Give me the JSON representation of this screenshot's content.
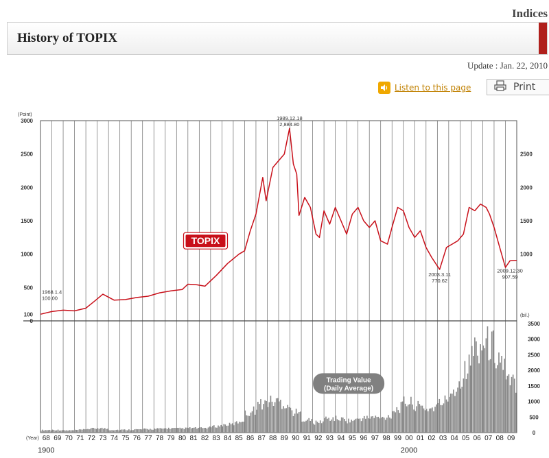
{
  "header": {
    "section": "Indices",
    "title": "History of TOPIX",
    "update": "Update : Jan. 22, 2010"
  },
  "toolbar": {
    "listen_label": "Listen to this page",
    "print_label": "Print"
  },
  "colors": {
    "accent": "#b0201c",
    "line": "#c8101a",
    "bars": "#8a8a8a",
    "badge": "#808080"
  },
  "icons": {
    "listen": "speaker-icon",
    "print": "printer-icon"
  },
  "chart_data": [
    {
      "type": "line",
      "series_label": "TOPIX",
      "ylabel": "(Point)",
      "ylim": [
        0,
        3000
      ],
      "y_ticks": [
        "0",
        "100",
        "500",
        "1000",
        "1500",
        "2000",
        "2500",
        "3000"
      ],
      "y_ticks_right": [
        "1000",
        "1500",
        "2000",
        "2500"
      ],
      "x": [
        1968.0,
        1969.0,
        1970.0,
        1971.0,
        1972.0,
        1972.8,
        1973.5,
        1974.5,
        1975.5,
        1976.5,
        1977.5,
        1978.5,
        1979.5,
        1980.5,
        1981.0,
        1981.8,
        1982.5,
        1983.5,
        1984.5,
        1985.5,
        1986.0,
        1986.5,
        1987.0,
        1987.6,
        1987.9,
        1988.5,
        1989.0,
        1989.5,
        1989.96,
        1990.3,
        1990.6,
        1990.8,
        1991.3,
        1991.8,
        1992.3,
        1992.6,
        1993.0,
        1993.5,
        1994.0,
        1994.5,
        1995.0,
        1995.5,
        1996.0,
        1996.5,
        1997.0,
        1997.5,
        1998.0,
        1998.6,
        1999.0,
        1999.5,
        2000.0,
        2000.5,
        2001.0,
        2001.5,
        2002.0,
        2002.5,
        2003.2,
        2003.8,
        2004.3,
        2004.8,
        2005.3,
        2005.8,
        2006.3,
        2006.8,
        2007.3,
        2007.6,
        2008.0,
        2008.5,
        2009.0,
        2009.4,
        2009.99
      ],
      "y": [
        100,
        140,
        160,
        150,
        190,
        300,
        400,
        310,
        320,
        350,
        370,
        420,
        450,
        470,
        550,
        540,
        520,
        680,
        860,
        1000,
        1050,
        1350,
        1600,
        2150,
        1800,
        2300,
        2400,
        2500,
        2884.8,
        2350,
        2200,
        1580,
        1850,
        1700,
        1300,
        1250,
        1650,
        1450,
        1700,
        1500,
        1300,
        1600,
        1700,
        1500,
        1400,
        1500,
        1200,
        1150,
        1400,
        1700,
        1650,
        1400,
        1250,
        1350,
        1100,
        950,
        770.62,
        1100,
        1150,
        1200,
        1300,
        1700,
        1650,
        1750,
        1700,
        1600,
        1400,
        1100,
        800,
        900,
        907.59
      ],
      "annotations": [
        {
          "label": "1968.1.4",
          "value": "100.00"
        },
        {
          "label": "1989.12.18",
          "value": "2,884.80"
        },
        {
          "label": "2003.3.11",
          "value": "770.62"
        },
        {
          "label": "2009.12.30",
          "value": "907.59"
        }
      ],
      "grid": true
    },
    {
      "type": "bar",
      "series_label": "Trading Value\n(Daily Average)",
      "ylabel": "(bil.)",
      "ylim": [
        0,
        3500
      ],
      "y_ticks": [
        "0",
        "500",
        "1000",
        "1500",
        "2000",
        "2500",
        "3000",
        "3500"
      ],
      "xlabel": "(Year)",
      "x_tick_labels": [
        "68",
        "69",
        "70",
        "71",
        "72",
        "73",
        "74",
        "75",
        "76",
        "77",
        "78",
        "79",
        "80",
        "81",
        "82",
        "83",
        "84",
        "85",
        "86",
        "87",
        "88",
        "89",
        "90",
        "91",
        "92",
        "93",
        "94",
        "95",
        "96",
        "97",
        "98",
        "99",
        "00",
        "01",
        "02",
        "03",
        "04",
        "05",
        "06",
        "07",
        "08",
        "09"
      ],
      "century_labels": [
        "1900",
        "2000"
      ],
      "values": [
        80,
        90,
        70,
        80,
        120,
        150,
        90,
        90,
        100,
        110,
        120,
        140,
        130,
        150,
        140,
        190,
        250,
        280,
        600,
        900,
        1000,
        1000,
        700,
        450,
        300,
        450,
        450,
        380,
        450,
        500,
        450,
        700,
        1000,
        850,
        750,
        900,
        1300,
        1800,
        2700,
        2900,
        2600,
        1600
      ],
      "grid": true
    }
  ]
}
